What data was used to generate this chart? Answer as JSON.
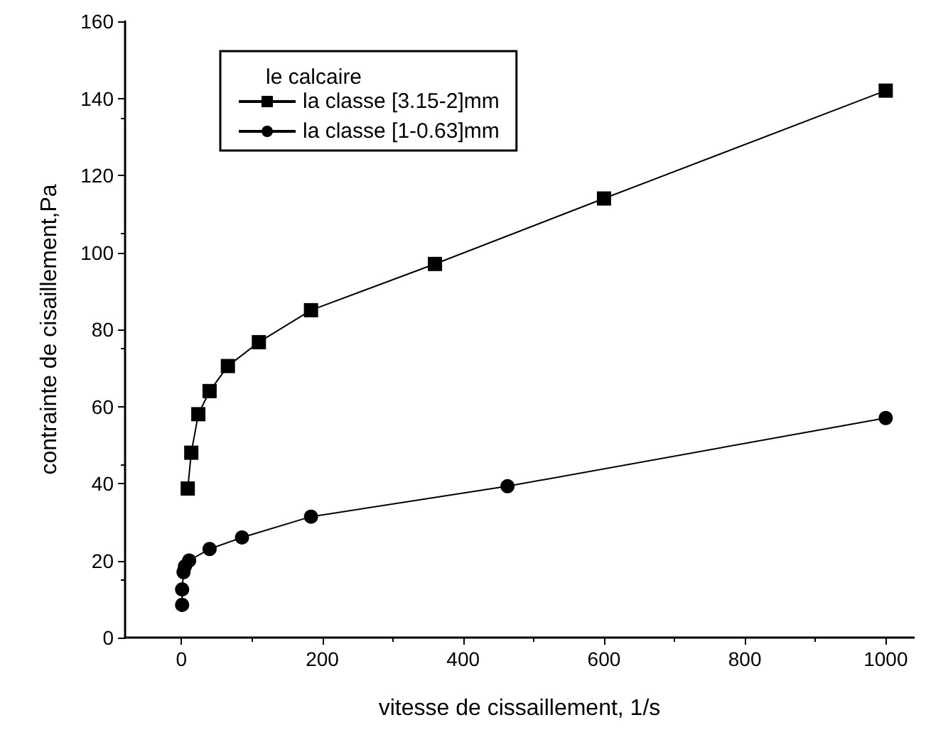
{
  "chart_data": {
    "type": "line",
    "xlabel": "vitesse de cissaillement, 1/s",
    "ylabel": "contrainte de cisaillement,Pa",
    "legend_title": "le calcaire",
    "legend": "top left",
    "line_style": "solid",
    "grid": false,
    "xlim": [
      -80,
      1040
    ],
    "xticks": [
      0,
      200,
      400,
      600,
      800,
      1000
    ],
    "ylim": [
      0,
      160
    ],
    "yticks": [
      0,
      20,
      40,
      60,
      80,
      100,
      120,
      140,
      160
    ],
    "series": [
      {
        "name": "la classe [3.15-2]mm",
        "color": "#000000",
        "marker": "square",
        "x": [
          9,
          14,
          24,
          40,
          66,
          110,
          184,
          360,
          600,
          1000
        ],
        "values": [
          38.7,
          48,
          58,
          64,
          70.5,
          76.7,
          85,
          97,
          114,
          142
        ]
      },
      {
        "name": "la classe [1-0.63]mm",
        "color": "#000000",
        "marker": "circle",
        "x": [
          1,
          1,
          3,
          5,
          11,
          40,
          86,
          184,
          463,
          1000
        ],
        "values": [
          8.5,
          12.5,
          17,
          18.5,
          20,
          23,
          26,
          31.4,
          39.3,
          57
        ]
      }
    ]
  }
}
